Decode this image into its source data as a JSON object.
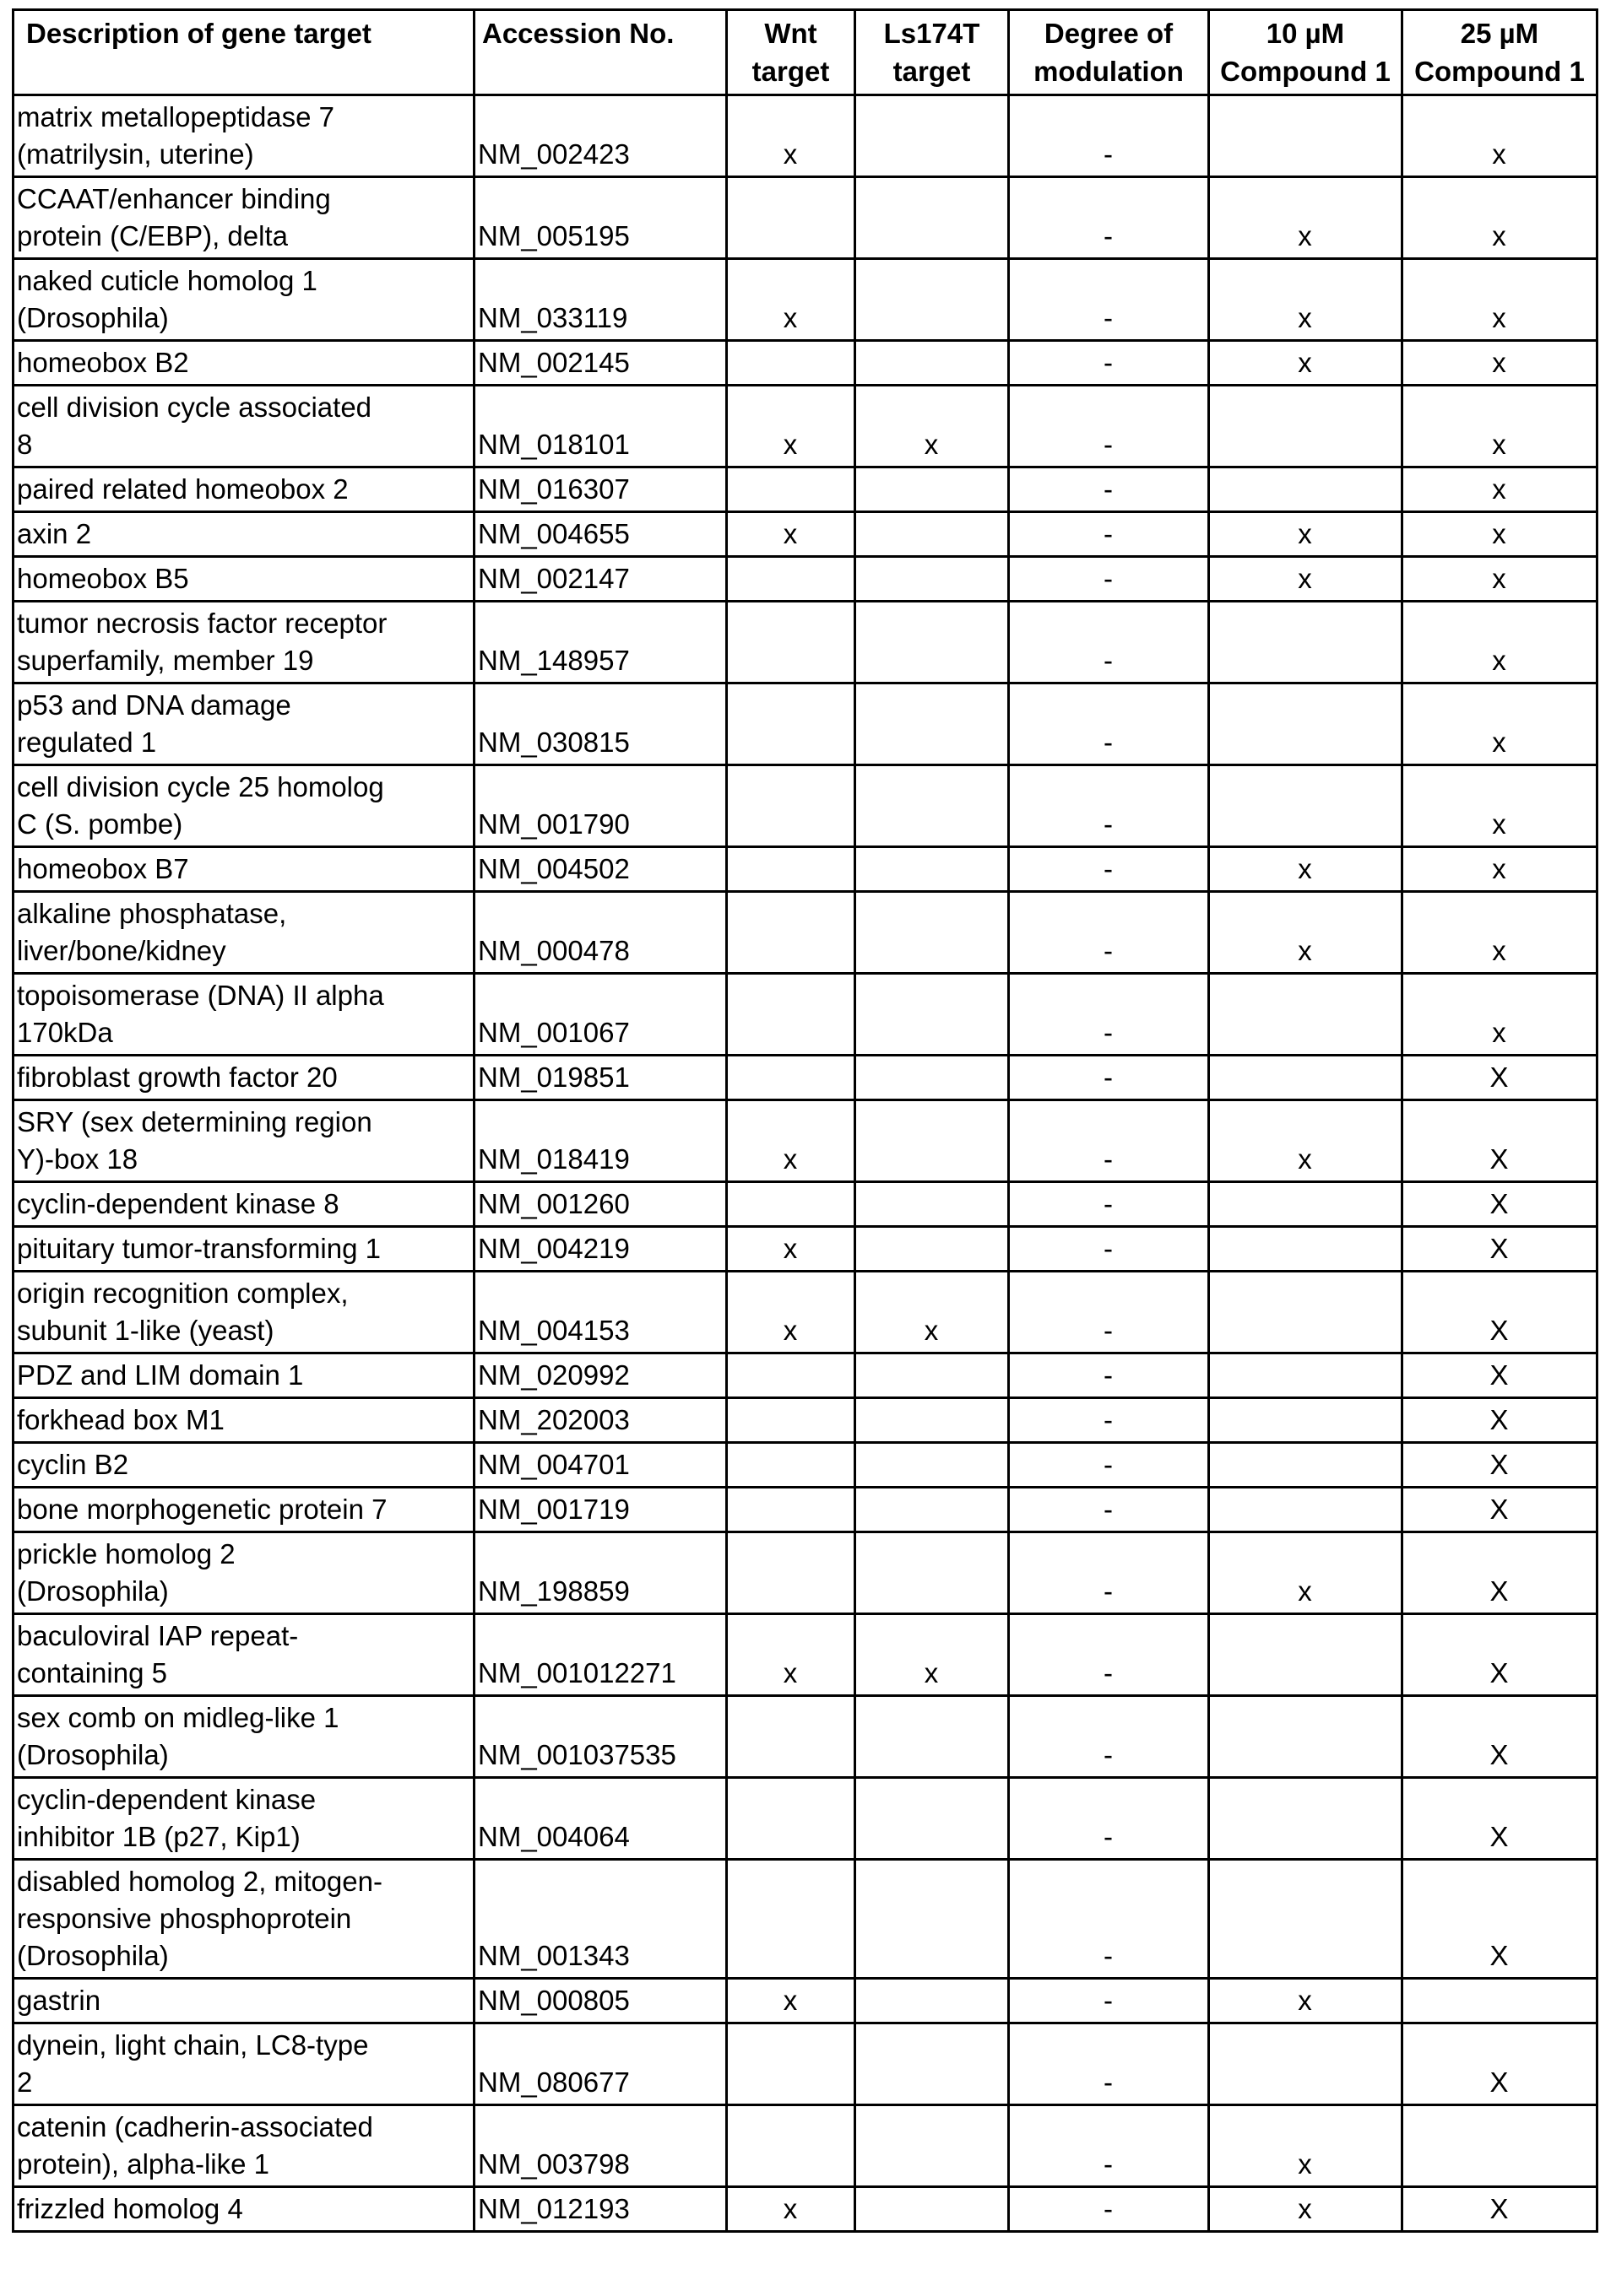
{
  "table": {
    "headers": [
      "Description of gene target",
      "Accession No.",
      "Wnt target",
      "Ls174T target",
      "Degree of modulation",
      "10 µM Compound 1",
      "25 µM Compound 1"
    ],
    "rows": [
      [
        "matrix metallopeptidase 7\n(matrilysin, uterine)",
        "NM_002423",
        "x",
        "",
        "-",
        "",
        "x"
      ],
      [
        "CCAAT/enhancer binding\nprotein (C/EBP), delta",
        "NM_005195",
        "",
        "",
        "-",
        "x",
        "x"
      ],
      [
        "naked cuticle homolog 1\n(Drosophila)",
        "NM_033119",
        "x",
        "",
        "-",
        "x",
        "x"
      ],
      [
        "homeobox B2",
        "NM_002145",
        "",
        "",
        "-",
        "x",
        "x"
      ],
      [
        "cell division cycle associated\n8",
        "NM_018101",
        "x",
        "x",
        "-",
        "",
        "x"
      ],
      [
        "paired related homeobox 2",
        "NM_016307",
        "",
        "",
        "-",
        "",
        "x"
      ],
      [
        "axin 2",
        "NM_004655",
        "x",
        "",
        "-",
        "x",
        "x"
      ],
      [
        "homeobox B5",
        "NM_002147",
        "",
        "",
        "-",
        "x",
        "x"
      ],
      [
        "tumor necrosis factor receptor\nsuperfamily, member 19",
        "NM_148957",
        "",
        "",
        "-",
        "",
        "x"
      ],
      [
        "p53 and DNA damage\nregulated 1",
        "NM_030815",
        "",
        "",
        "-",
        "",
        "x"
      ],
      [
        "cell division cycle 25 homolog\nC (S. pombe)",
        "NM_001790",
        "",
        "",
        "-",
        "",
        "x"
      ],
      [
        "homeobox B7",
        "NM_004502",
        "",
        "",
        "-",
        "x",
        "x"
      ],
      [
        "alkaline phosphatase,\nliver/bone/kidney",
        "NM_000478",
        "",
        "",
        "-",
        "x",
        "x"
      ],
      [
        "topoisomerase (DNA) II alpha\n170kDa",
        "NM_001067",
        "",
        "",
        "-",
        "",
        "x"
      ],
      [
        "fibroblast growth factor 20",
        "NM_019851",
        "",
        "",
        "-",
        "",
        "X"
      ],
      [
        "SRY (sex determining region\nY)-box 18",
        "NM_018419",
        "x",
        "",
        "-",
        "x",
        "X"
      ],
      [
        "cyclin-dependent kinase 8",
        "NM_001260",
        "",
        "",
        "-",
        "",
        "X"
      ],
      [
        "pituitary tumor-transforming 1",
        "NM_004219",
        "x",
        "",
        "-",
        "",
        "X"
      ],
      [
        "origin recognition complex,\nsubunit 1-like (yeast)",
        "NM_004153",
        "x",
        "x",
        "-",
        "",
        "X"
      ],
      [
        "PDZ and LIM domain 1",
        "NM_020992",
        "",
        "",
        "-",
        "",
        "X"
      ],
      [
        "forkhead box M1",
        "NM_202003",
        "",
        "",
        "-",
        "",
        "X"
      ],
      [
        "cyclin B2",
        "NM_004701",
        "",
        "",
        "-",
        "",
        "X"
      ],
      [
        "bone morphogenetic protein 7",
        "NM_001719",
        "",
        "",
        "-",
        "",
        "X"
      ],
      [
        "prickle homolog 2\n(Drosophila)",
        "NM_198859",
        "",
        "",
        "-",
        "x",
        "X"
      ],
      [
        "baculoviral IAP repeat-\ncontaining 5",
        "NM_001012271",
        "x",
        "x",
        "-",
        "",
        "X"
      ],
      [
        "sex comb on midleg-like 1\n(Drosophila)",
        "NM_001037535",
        "",
        "",
        "-",
        "",
        "X"
      ],
      [
        "cyclin-dependent kinase\ninhibitor 1B (p27, Kip1)",
        "NM_004064",
        "",
        "",
        "-",
        "",
        "X"
      ],
      [
        "disabled homolog 2, mitogen-\nresponsive phosphoprotein\n(Drosophila)",
        "NM_001343",
        "",
        "",
        "-",
        "",
        "X"
      ],
      [
        "gastrin",
        "NM_000805",
        "x",
        "",
        "-",
        "x",
        ""
      ],
      [
        "dynein, light chain, LC8-type\n2",
        "NM_080677",
        "",
        "",
        "-",
        "",
        "X"
      ],
      [
        "catenin (cadherin-associated\nprotein), alpha-like 1",
        "NM_003798",
        "",
        "",
        "-",
        "x",
        ""
      ],
      [
        "frizzled homolog 4",
        "NM_012193",
        "x",
        "",
        "-",
        "x",
        "X"
      ]
    ]
  }
}
